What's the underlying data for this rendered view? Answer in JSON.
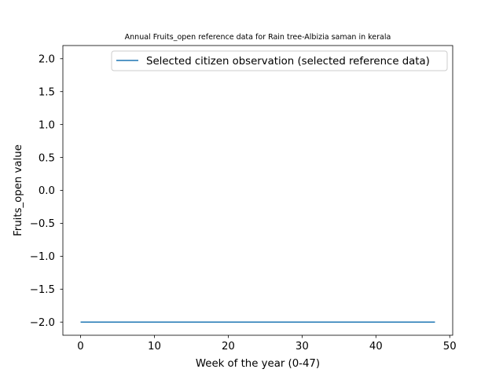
{
  "chart_data": {
    "type": "line",
    "title": "Annual Fruits_open reference data for Rain tree-Albizia saman in kerala",
    "xlabel": "Week of the year (0-47)",
    "ylabel": "Fruits_open value",
    "xlim": [
      -2.4,
      50.4
    ],
    "ylim": [
      -2.2,
      2.2
    ],
    "x_ticks": [
      0,
      10,
      20,
      30,
      40,
      50
    ],
    "y_ticks": [
      -2.0,
      -1.5,
      -1.0,
      -0.5,
      0.0,
      0.5,
      1.0,
      1.5,
      2.0
    ],
    "x_tick_labels": [
      "0",
      "10",
      "20",
      "30",
      "40",
      "50"
    ],
    "y_tick_labels": [
      "−2.0",
      "−1.5",
      "−1.0",
      "−0.5",
      "0.0",
      "0.5",
      "1.0",
      "1.5",
      "2.0"
    ],
    "grid": false,
    "legend_position": "top-right",
    "series": [
      {
        "name": "Selected citizen observation (selected reference data)",
        "color": "#1f77b4",
        "x": [
          0,
          48
        ],
        "y": [
          -2,
          -2
        ]
      }
    ]
  }
}
